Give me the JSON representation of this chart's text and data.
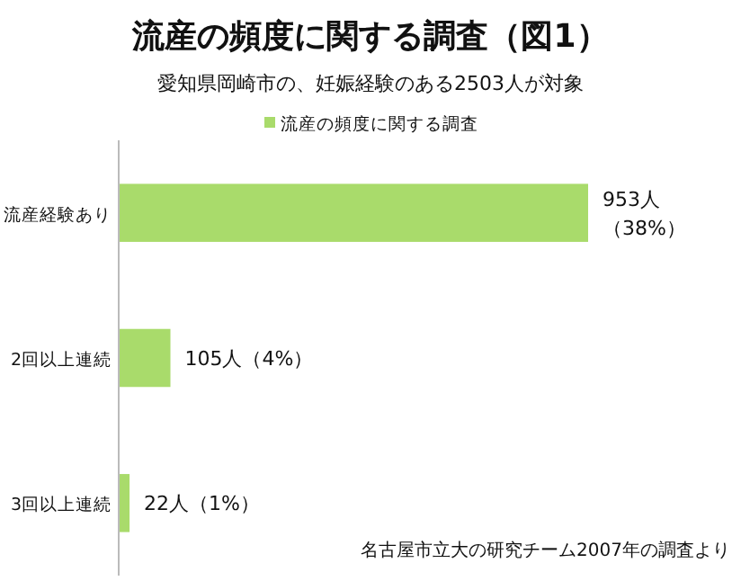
{
  "chart_data": {
    "type": "bar",
    "orientation": "horizontal",
    "title": "流産の頻度に関する調査（図1）",
    "subtitle": "愛知県岡崎市の、妊娠経験のある2503人が対象",
    "categories": [
      "流産経験あり",
      "2回以上連続",
      "3回以上連続"
    ],
    "series": [
      {
        "name": "流産の頻度に関する調査",
        "color": "#a9db6b",
        "values": [
          953,
          105,
          22
        ],
        "value_labels": [
          "953人（38%）",
          "105人（4%）",
          "22人（1%）"
        ]
      }
    ],
    "legend": "top",
    "annotations": [
      "名古屋市立大の研究チーム2007年の調査より"
    ]
  }
}
